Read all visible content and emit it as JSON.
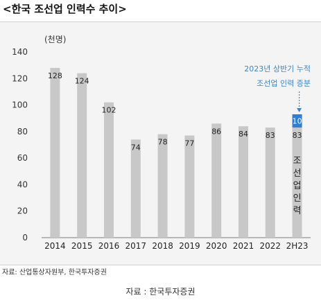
{
  "title": "<한국 조선업 인력수 추이>",
  "source_inner": "자료: 산업통상자원부, 한국투자증권",
  "source_caption": "자료 : 한국투자증권",
  "chart_data": {
    "type": "bar",
    "unit_label": "(천명)",
    "categories": [
      "2014",
      "2015",
      "2016",
      "2017",
      "2018",
      "2019",
      "2020",
      "2021",
      "2022",
      "2H23"
    ],
    "values": [
      128,
      124,
      102,
      74,
      78,
      77,
      86,
      84,
      83,
      83
    ],
    "stacked_increment": {
      "category": "2H23",
      "value": 10,
      "color": "#2f7ed1"
    },
    "annotation": [
      "2023년 상반기 누적",
      "조선업 인력 증분"
    ],
    "vertical_label": "조선업인력",
    "ylim": [
      0,
      140
    ],
    "yticks": [
      0,
      20,
      40,
      60,
      80,
      100,
      120,
      140
    ],
    "bar_color": "#c8c8c8",
    "annotation_color": "#3d86c9",
    "grid": false
  }
}
